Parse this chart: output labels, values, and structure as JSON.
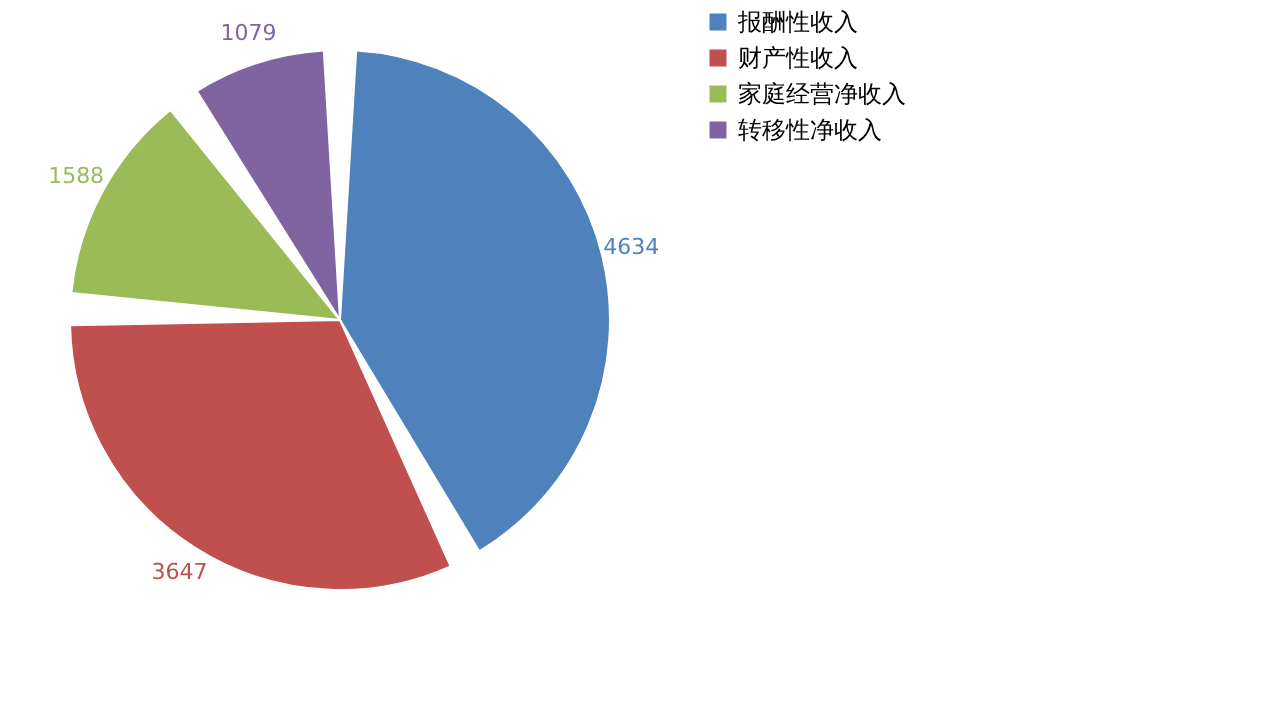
{
  "chart_data": {
    "type": "pie",
    "categories": [
      "报酬性收入",
      "财产性收入",
      "家庭经营净收入",
      "转移性净收入"
    ],
    "values": [
      4634,
      3647,
      1588,
      1079
    ],
    "colors": [
      "#4f81bd",
      "#c0504d",
      "#9bbb59",
      "#8064a2"
    ],
    "data_labels": true,
    "legend": "right"
  }
}
